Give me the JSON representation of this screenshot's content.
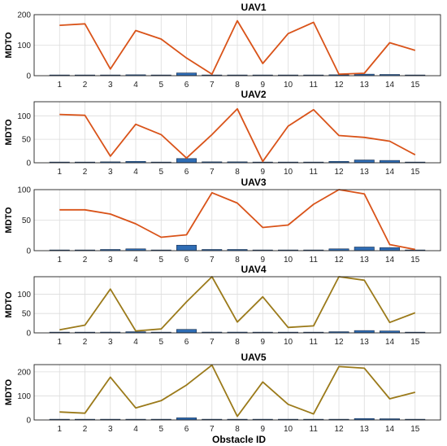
{
  "chart_data": [
    {
      "type": "bar+line",
      "title": "UAV1",
      "ylabel": "MDTO",
      "xlabel": "",
      "categories": [
        "1",
        "2",
        "3",
        "4",
        "5",
        "6",
        "7",
        "8",
        "9",
        "10",
        "11",
        "12",
        "13",
        "14",
        "15"
      ],
      "ylim": [
        0,
        200
      ],
      "yticks": [
        0,
        100,
        200
      ],
      "line_color": "#d95319",
      "bar_color": "#2f6db5",
      "grid": true,
      "line": [
        165,
        170,
        22,
        148,
        120,
        58,
        5,
        180,
        40,
        138,
        175,
        5,
        8,
        108,
        83
      ],
      "bars": [
        1,
        1,
        2,
        3,
        1,
        9,
        2,
        1,
        0,
        1,
        0,
        3,
        5,
        4,
        0
      ]
    },
    {
      "type": "bar+line",
      "title": "UAV2",
      "ylabel": "MDTO",
      "xlabel": "",
      "categories": [
        "1",
        "2",
        "3",
        "4",
        "5",
        "6",
        "7",
        "8",
        "9",
        "10",
        "11",
        "12",
        "13",
        "14",
        "15"
      ],
      "ylim": [
        0,
        130
      ],
      "yticks": [
        0,
        50,
        100
      ],
      "line_color": "#d95319",
      "bar_color": "#2f6db5",
      "grid": true,
      "line": [
        103,
        101,
        14,
        82,
        60,
        10,
        60,
        115,
        3,
        78,
        113,
        58,
        54,
        46,
        17
      ],
      "bars": [
        1,
        1,
        2,
        3,
        1,
        9,
        2,
        2,
        0,
        1,
        0,
        3,
        6,
        5,
        0
      ]
    },
    {
      "type": "bar+line",
      "title": "UAV3",
      "ylabel": "MDTO",
      "xlabel": "",
      "categories": [
        "1",
        "2",
        "3",
        "4",
        "5",
        "6",
        "7",
        "8",
        "9",
        "10",
        "11",
        "12",
        "13",
        "14",
        "15"
      ],
      "ylim": [
        0,
        100
      ],
      "yticks": [
        0,
        50,
        100
      ],
      "line_color": "#d95319",
      "bar_color": "#2f6db5",
      "grid": true,
      "line": [
        67,
        67,
        60,
        44,
        22,
        26,
        95,
        78,
        38,
        42,
        76,
        100,
        93,
        10,
        2
      ],
      "bars": [
        1,
        1,
        2,
        3,
        1,
        9,
        2,
        2,
        0,
        1,
        0,
        3,
        6,
        5,
        0
      ]
    },
    {
      "type": "bar+line",
      "title": "UAV4",
      "ylabel": "MDTO",
      "xlabel": "",
      "categories": [
        "1",
        "2",
        "3",
        "4",
        "5",
        "6",
        "7",
        "8",
        "9",
        "10",
        "11",
        "12",
        "13",
        "14",
        "15"
      ],
      "ylim": [
        0,
        145
      ],
      "yticks": [
        0,
        50,
        100
      ],
      "line_color": "#9b7a1a",
      "bar_color": "#2f6db5",
      "grid": true,
      "line": [
        8,
        20,
        113,
        5,
        10,
        80,
        145,
        28,
        93,
        14,
        18,
        145,
        136,
        27,
        52
      ],
      "bars": [
        1,
        1,
        2,
        3,
        1,
        9,
        2,
        2,
        0,
        1,
        0,
        3,
        6,
        5,
        0
      ]
    },
    {
      "type": "bar+line",
      "title": "UAV5",
      "ylabel": "MDTO",
      "xlabel": "Obstacle ID",
      "categories": [
        "1",
        "2",
        "3",
        "4",
        "5",
        "6",
        "7",
        "8",
        "9",
        "10",
        "11",
        "12",
        "13",
        "14",
        "15"
      ],
      "ylim": [
        0,
        230
      ],
      "yticks": [
        0,
        100,
        200
      ],
      "line_color": "#9b7a1a",
      "bar_color": "#2f6db5",
      "grid": true,
      "line": [
        33,
        28,
        178,
        50,
        80,
        145,
        228,
        15,
        158,
        65,
        25,
        222,
        215,
        88,
        115
      ],
      "bars": [
        1,
        1,
        2,
        3,
        1,
        9,
        2,
        2,
        0,
        1,
        0,
        3,
        6,
        5,
        0
      ]
    }
  ]
}
